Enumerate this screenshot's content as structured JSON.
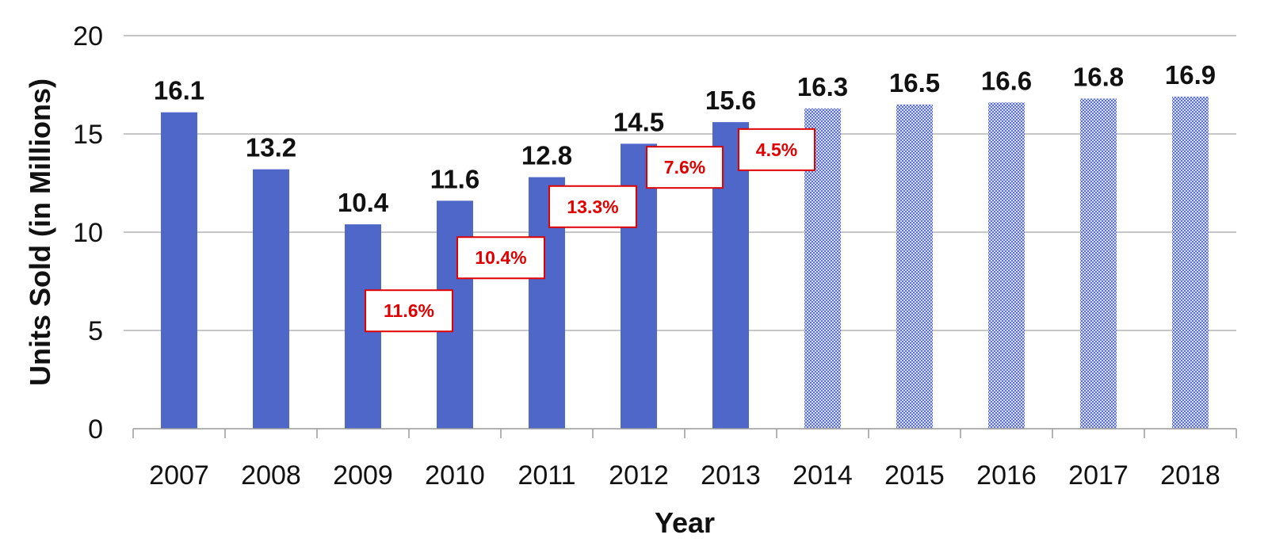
{
  "chart_data": {
    "type": "bar",
    "categories": [
      "2007",
      "2008",
      "2009",
      "2010",
      "2011",
      "2012",
      "2013",
      "2014",
      "2015",
      "2016",
      "2017",
      "2018"
    ],
    "values": [
      16.1,
      13.2,
      10.4,
      11.6,
      12.8,
      14.5,
      15.6,
      16.3,
      16.5,
      16.6,
      16.8,
      16.9
    ],
    "value_labels": [
      "16.1",
      "13.2",
      "10.4",
      "11.6",
      "12.8",
      "14.5",
      "15.6",
      "16.3",
      "16.5",
      "16.6",
      "16.8",
      "16.9"
    ],
    "projected_from_category": "2014",
    "xlabel": "Year",
    "ylabel": "Units Sold (in Millions)",
    "ylim": [
      0,
      20
    ],
    "yticks": [
      "0",
      "5",
      "10",
      "15",
      "20"
    ],
    "grid": "horizontal",
    "colors": {
      "bar": "#4f67c8",
      "projected_bar": "#8090d8",
      "growth_label": "#e00000"
    },
    "growth_labels": [
      {
        "category": "2010",
        "text": "11.6%",
        "y": 6.0
      },
      {
        "category": "2011",
        "text": "10.4%",
        "y": 8.7
      },
      {
        "category": "2012",
        "text": "13.3%",
        "y": 11.3
      },
      {
        "category": "2013",
        "text": "7.6%",
        "y": 13.3
      },
      {
        "category": "2014",
        "text": "4.5%",
        "y": 14.2
      }
    ]
  }
}
